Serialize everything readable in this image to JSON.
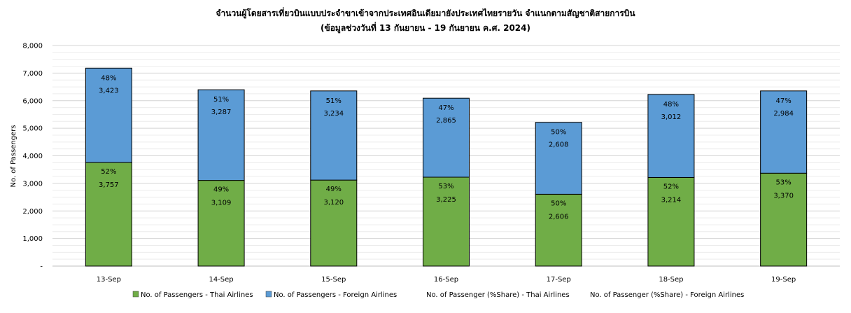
{
  "chart_data": {
    "type": "bar",
    "stacked": true,
    "title": "จำนวนผู้โดยสารเที่ยวบินแบบประจำขาเข้าจากประเทศอินเดียมายังประเทศไทยรายวัน  จำแนกตามสัญชาติสายการบิน",
    "subtitle": "(ข้อมูลช่วงวันที่ 13 กันยายน - 19 กันยายน ค.ศ. 2024)",
    "xlabel": "",
    "ylabel": "No. of Passengers",
    "ylim": [
      0,
      8000
    ],
    "y_ticks": [
      "-",
      "1,000",
      "2,000",
      "3,000",
      "4,000",
      "5,000",
      "6,000",
      "7,000",
      "8,000"
    ],
    "grid": true,
    "legend_position": "bottom",
    "categories": [
      "13-Sep",
      "14-Sep",
      "15-Sep",
      "16-Sep",
      "17-Sep",
      "18-Sep",
      "19-Sep"
    ],
    "series": [
      {
        "name": "No. of Passengers - Thai Airlines",
        "color": "#70ad47",
        "values": [
          3757,
          3109,
          3120,
          3225,
          2606,
          3214,
          3370
        ],
        "value_labels": [
          "3,757",
          "3,109",
          "3,120",
          "3,225",
          "2,606",
          "3,214",
          "3,370"
        ],
        "share_labels": [
          "52%",
          "49%",
          "49%",
          "53%",
          "50%",
          "52%",
          "53%"
        ]
      },
      {
        "name": "No. of Passengers - Foreign Airlines",
        "color": "#5b9bd5",
        "values": [
          3423,
          3287,
          3234,
          2865,
          2608,
          3012,
          2984
        ],
        "value_labels": [
          "3,423",
          "3,287",
          "3,234",
          "2,865",
          "2,608",
          "3,012",
          "2,984"
        ],
        "share_labels": [
          "48%",
          "51%",
          "51%",
          "47%",
          "50%",
          "48%",
          "47%"
        ]
      }
    ],
    "legend": [
      {
        "label": "No. of Passengers - Thai Airlines",
        "swatch": "#70ad47"
      },
      {
        "label": "No. of Passengers - Foreign Airlines",
        "swatch": "#5b9bd5"
      },
      {
        "label": "No. of Passenger (%Share) - Thai Airlines",
        "swatch": ""
      },
      {
        "label": "No. of Passenger (%Share) - Foreign Airlines",
        "swatch": ""
      }
    ]
  }
}
